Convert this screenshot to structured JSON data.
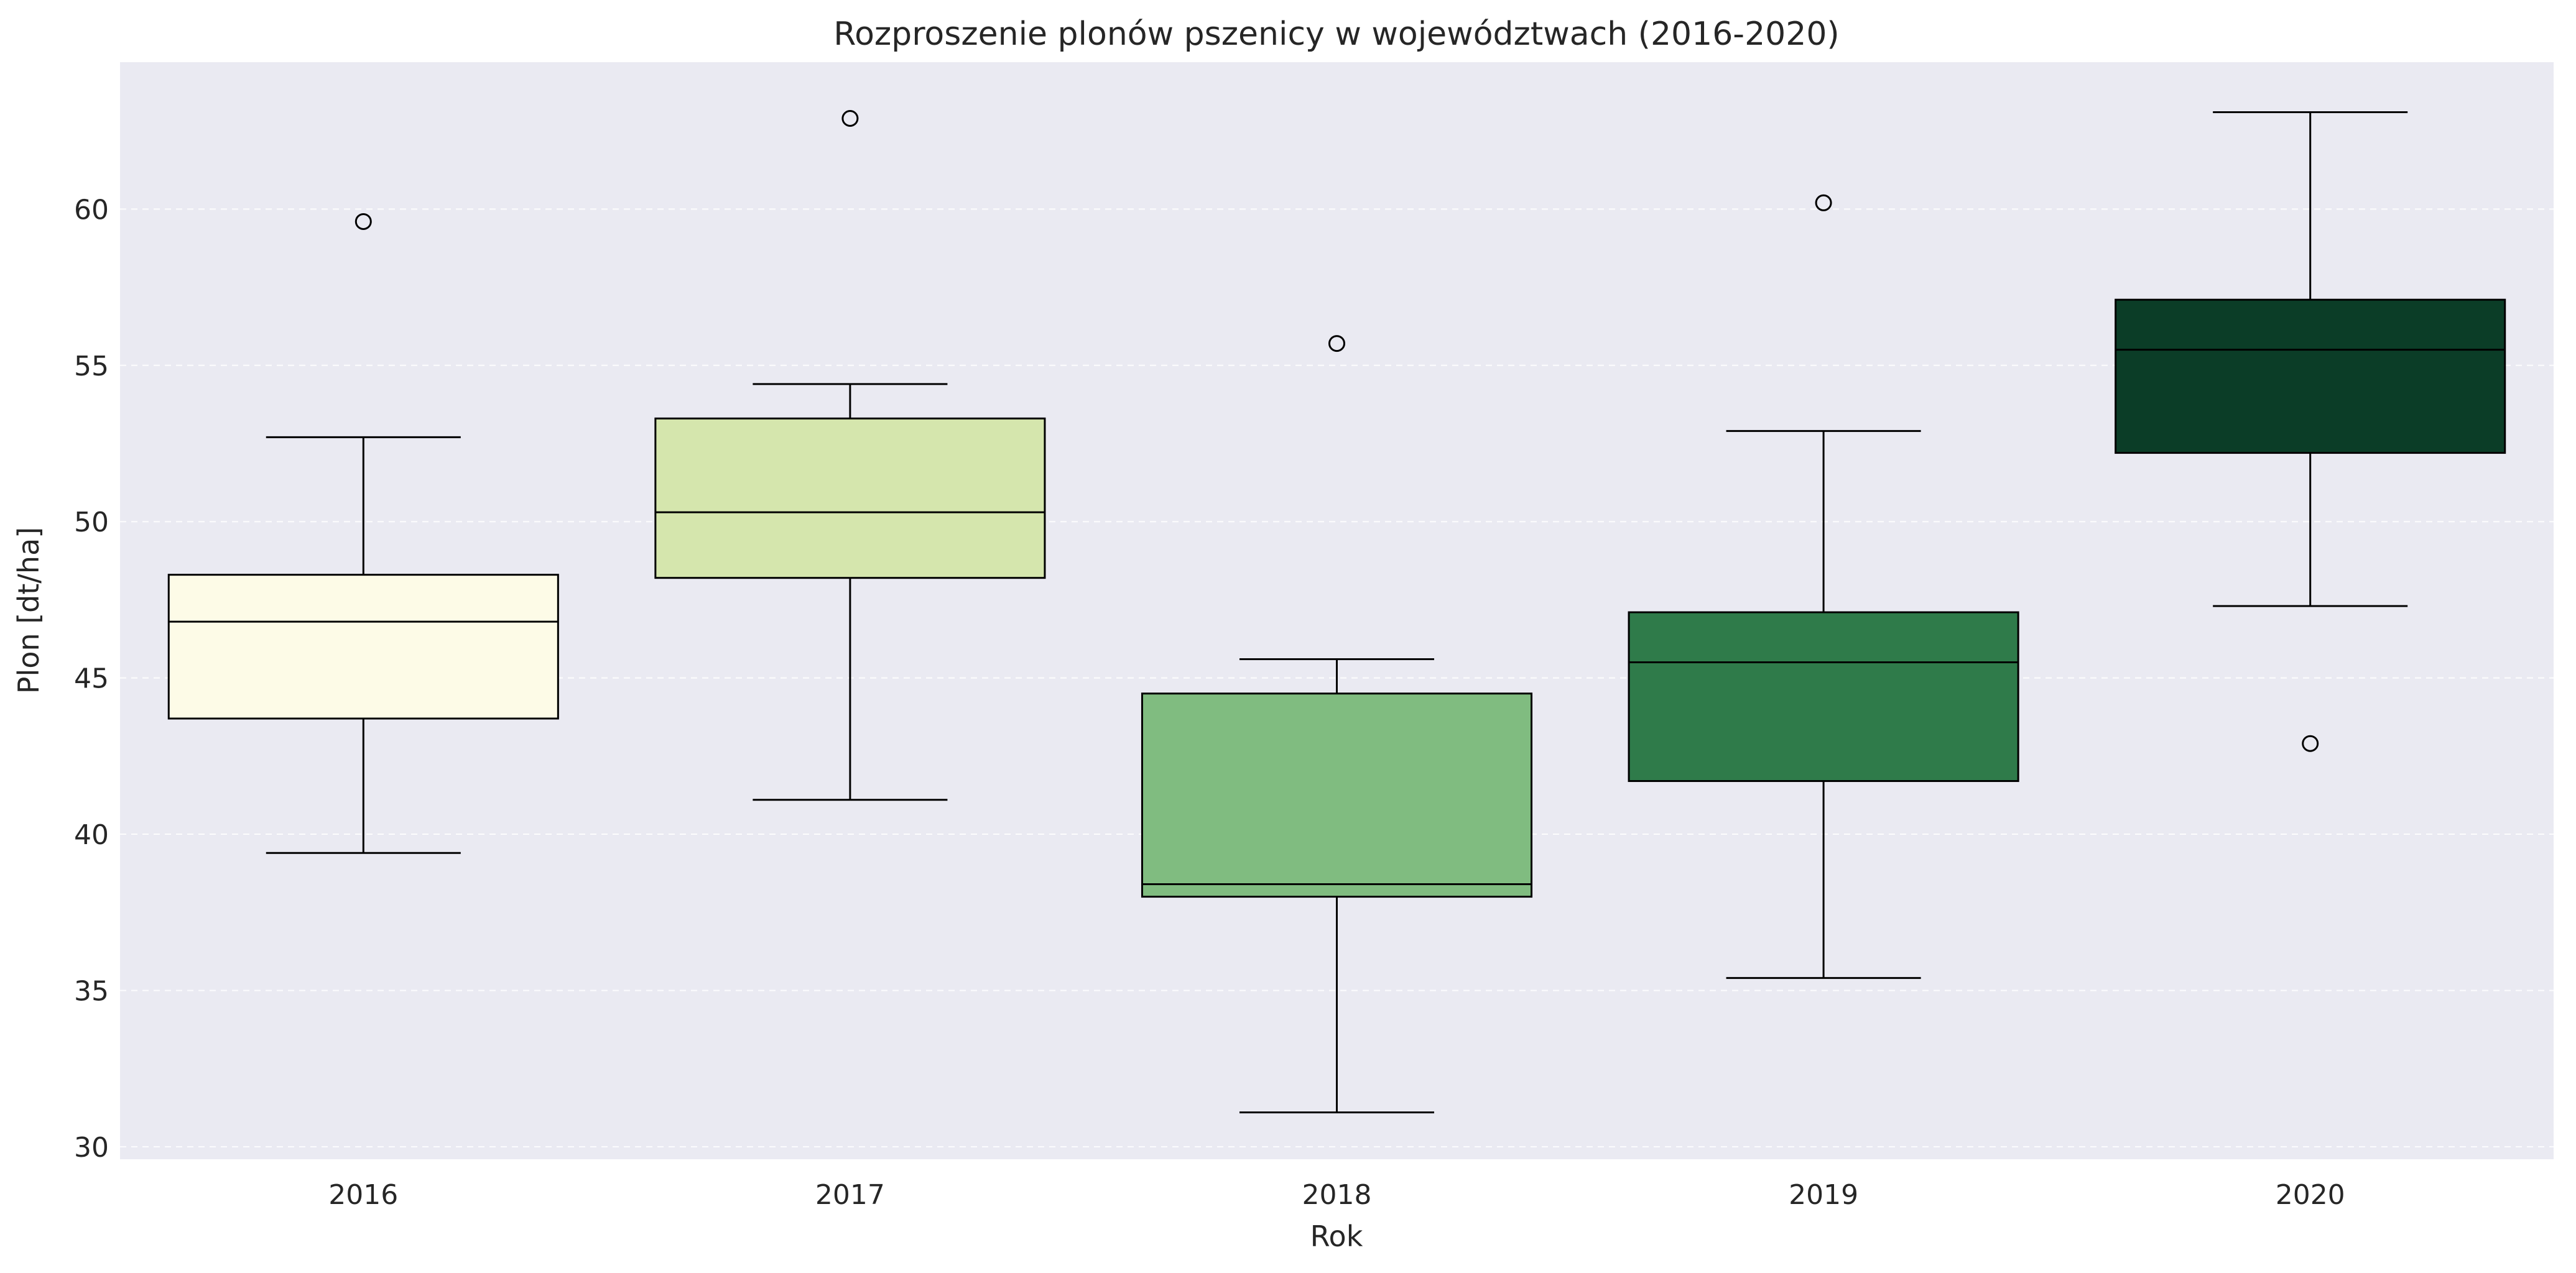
{
  "chart_data": {
    "type": "box",
    "title": "Rozproszenie plonów pszenicy w województwach (2016-2020)",
    "xlabel": "Rok",
    "ylabel": "Plon [dt/ha]",
    "ylim": [
      29.6,
      64.7
    ],
    "yticks": [
      30,
      35,
      40,
      45,
      50,
      55,
      60
    ],
    "grid": "horizontal dashed",
    "legend": "none",
    "categories": [
      "2016",
      "2017",
      "2018",
      "2019",
      "2020"
    ],
    "boxes": [
      {
        "category": "2016",
        "whisker_low": 39.4,
        "q1": 43.7,
        "median": 46.8,
        "q3": 48.3,
        "whisker_high": 52.7,
        "outliers": [
          59.6
        ],
        "color": "#fdfbe7"
      },
      {
        "category": "2017",
        "whisker_low": 41.1,
        "q1": 48.2,
        "median": 50.3,
        "q3": 53.3,
        "whisker_high": 54.4,
        "outliers": [
          62.9
        ],
        "color": "#d5e6ad"
      },
      {
        "category": "2018",
        "whisker_low": 31.1,
        "q1": 38.0,
        "median": 38.4,
        "q3": 44.5,
        "whisker_high": 45.6,
        "outliers": [
          55.7
        ],
        "color": "#80bc80"
      },
      {
        "category": "2019",
        "whisker_low": 35.4,
        "q1": 41.7,
        "median": 45.5,
        "q3": 47.1,
        "whisker_high": 52.9,
        "outliers": [
          60.2
        ],
        "color": "#2f7b4a"
      },
      {
        "category": "2020",
        "whisker_low": 47.3,
        "q1": 52.2,
        "median": 55.5,
        "q3": 57.1,
        "whisker_high": 63.1,
        "outliers": [
          42.9
        ],
        "color": "#0b3d27"
      }
    ],
    "colors": {
      "plot_background": "#eaeaf2",
      "grid": "#ffffff",
      "box_edge": "#000000"
    }
  }
}
